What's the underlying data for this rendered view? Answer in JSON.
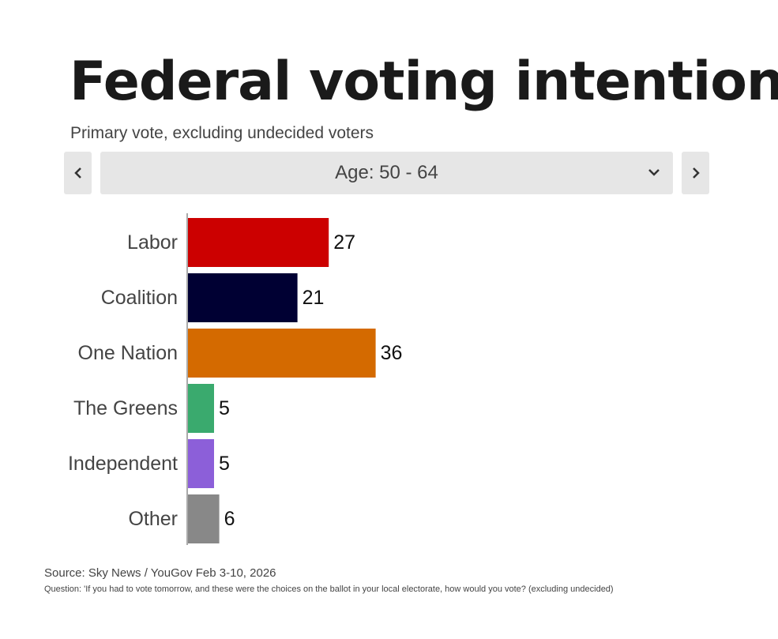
{
  "header": {
    "title": "Federal voting intention",
    "subtitle": "Primary vote, excluding undecided voters"
  },
  "selector": {
    "selected": "Age: 50 - 64"
  },
  "chart_data": {
    "type": "bar",
    "orientation": "horizontal",
    "categories": [
      "Labor",
      "Coalition",
      "One Nation",
      "The Greens",
      "Independent",
      "Other"
    ],
    "values": [
      27,
      21,
      36,
      5,
      5,
      6
    ],
    "colors": [
      "#cc0000",
      "#000033",
      "#d46a00",
      "#3aaa6e",
      "#8c5fd9",
      "#888888"
    ],
    "xlim": [
      0,
      100
    ],
    "grid": false,
    "legend": "none"
  },
  "footer": {
    "source": "Source: Sky News / YouGov Feb 3-10, 2026",
    "question": "Question: 'If you had to vote tomorrow, and these were the choices on the ballot in your local electorate, how would you vote? (excluding undecided)"
  }
}
